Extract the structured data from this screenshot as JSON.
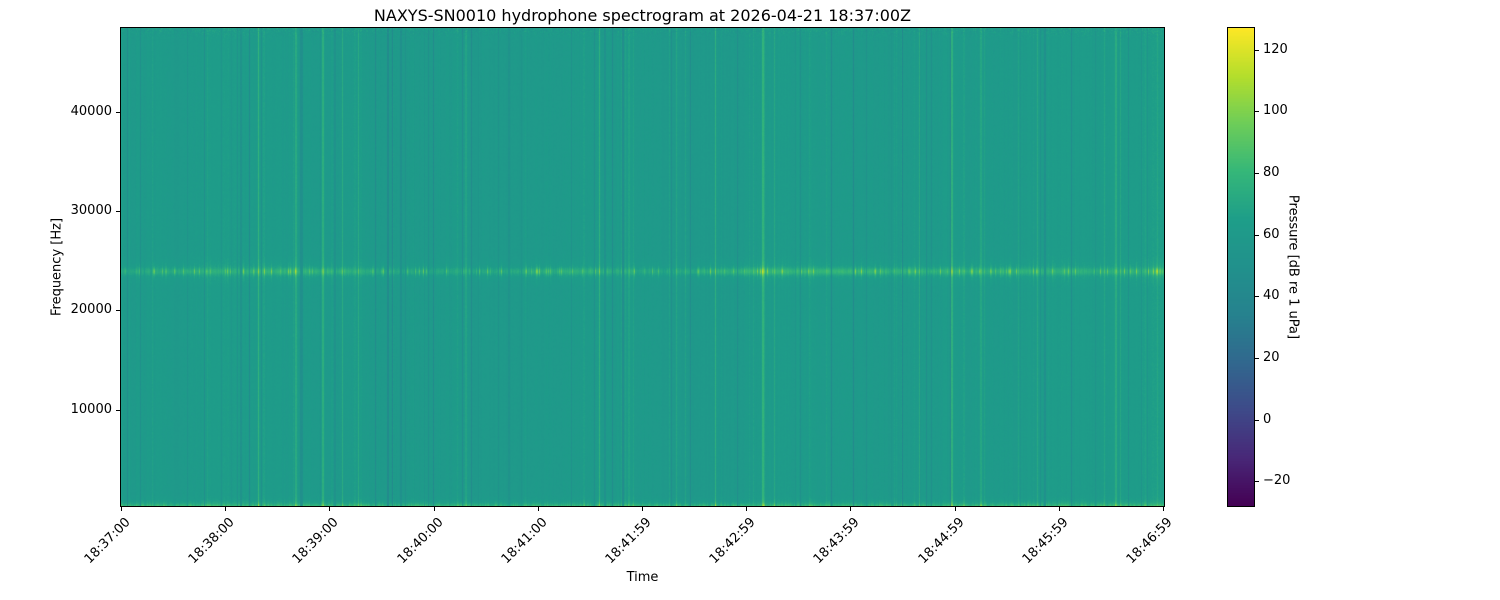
{
  "figure": {
    "title": "NAXYS-SN0010 hydrophone spectrogram at 2026-04-21 18:37:00Z",
    "xlabel": "Time",
    "ylabel": "Frequency [Hz]",
    "colorbar_label": "Pressure [dB re 1 uPa]"
  },
  "chart_data": {
    "type": "heatmap",
    "subtype": "spectrogram",
    "title": "NAXYS-SN0010 hydrophone spectrogram at 2026-04-21 18:37:00Z",
    "xlabel": "Time",
    "ylabel": "Frequency [Hz]",
    "x_tick_labels": [
      "18:37:00",
      "18:38:00",
      "18:39:00",
      "18:40:00",
      "18:41:00",
      "18:41:59",
      "18:42:59",
      "18:43:59",
      "18:44:59",
      "18:45:59",
      "18:46:59"
    ],
    "y_ticks_hz": [
      10000,
      20000,
      30000,
      40000
    ],
    "freq_range_hz": [
      300,
      48450
    ],
    "colormap": "viridis",
    "grid": false,
    "colorbar": {
      "label": "Pressure [dB re 1 uPa]",
      "ticks_db": [
        -20,
        0,
        20,
        40,
        60,
        80,
        100,
        120
      ],
      "range_db": [
        -28,
        127
      ],
      "position": "right"
    },
    "features": {
      "background_level_db": 62,
      "vertical_striping_db_span": [
        -20,
        18
      ],
      "tonal_band_hz": 24000,
      "tonal_band_boost_db": [
        6,
        34
      ],
      "low_freq_edge_boost_db": 26,
      "high_freq_edge_texture_db": 8,
      "seed": 7
    }
  }
}
